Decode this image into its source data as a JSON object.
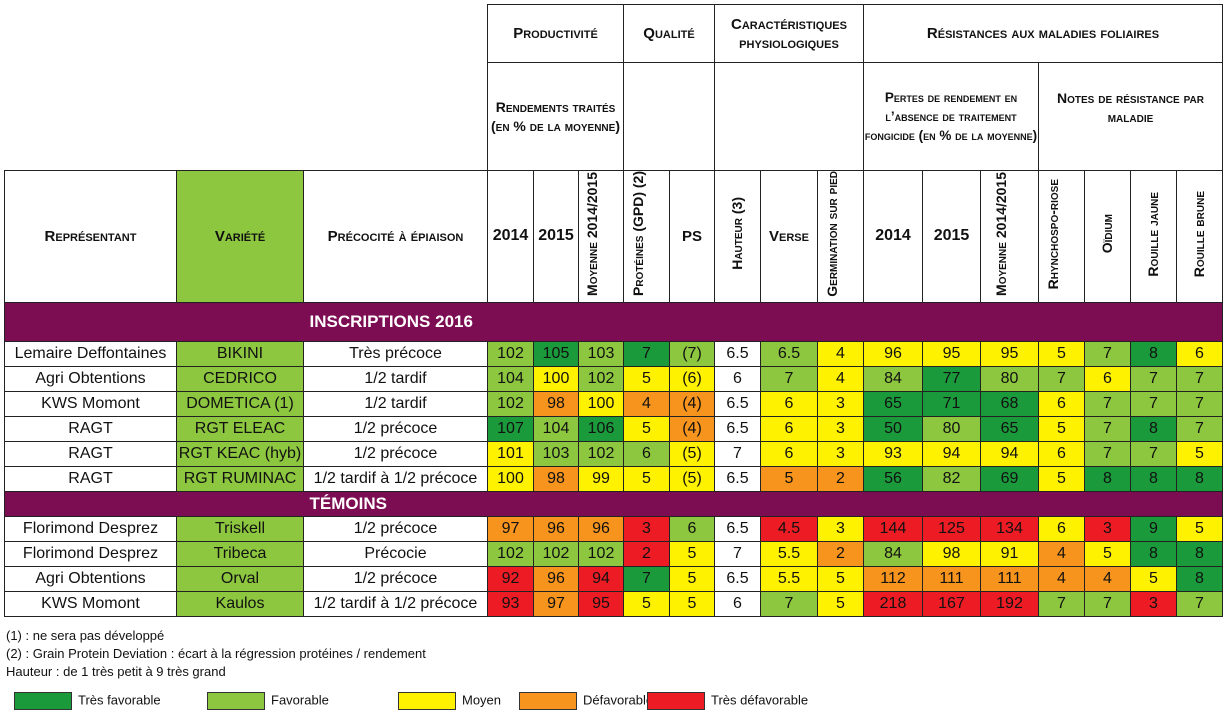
{
  "header": {
    "groups": {
      "productivite": "Productivité",
      "qualite": "Qualité",
      "caracteristiques": "Caractéristiques physiologiques",
      "resistances": "Résistances aux maladies foliaires"
    },
    "subgroups": {
      "rendements": "Rendements traités (en % de la moyenne)",
      "pertes": "Pertes de rendement en l’absence de traitement fongicide (en % de la moyenne)",
      "notes": "Notes de résistance par maladie"
    },
    "columns": {
      "representant": "Représentant",
      "variete": "Variété",
      "precocite": "Précocité à épiaison",
      "r2014": "2014",
      "r2015": "2015",
      "rmoy": "Moyenne 2014/2015",
      "proteines": "Protéines (GPD) (2)",
      "ps": "PS",
      "hauteur": "Hauteur (3)",
      "verse": "Verse",
      "germination": "Germination sur pied",
      "p2014": "2014",
      "p2015": "2015",
      "pmoy": "Moyenne 2014/2015",
      "rhyncho": "Rhynchospo-riose",
      "oidium": "Oïdium",
      "rjaune": "Rouille jaune",
      "rbrune": "Rouille brune"
    }
  },
  "sections": [
    {
      "title": "INSCRIPTIONS 2016",
      "rows": [
        {
          "representant": "Lemaire Deffontaines",
          "variete": "BIKINI",
          "precocite": "Très précoce",
          "values": [
            [
              "102",
              "F"
            ],
            [
              "105",
              "TF"
            ],
            [
              "103",
              "F"
            ],
            [
              "7",
              "TF"
            ],
            [
              "(7)",
              "F"
            ],
            [
              "6.5",
              "N"
            ],
            [
              "6.5",
              "F"
            ],
            [
              "4",
              "M"
            ],
            [
              "96",
              "M"
            ],
            [
              "95",
              "M"
            ],
            [
              "95",
              "M"
            ],
            [
              "5",
              "M"
            ],
            [
              "7",
              "F"
            ],
            [
              "8",
              "TF"
            ],
            [
              "6",
              "M"
            ]
          ]
        },
        {
          "representant": "Agri Obtentions",
          "variete": "CEDRICO",
          "precocite": "1/2 tardif",
          "values": [
            [
              "104",
              "F"
            ],
            [
              "100",
              "M"
            ],
            [
              "102",
              "F"
            ],
            [
              "5",
              "M"
            ],
            [
              "(6)",
              "M"
            ],
            [
              "6",
              "N"
            ],
            [
              "7",
              "F"
            ],
            [
              "4",
              "M"
            ],
            [
              "84",
              "F"
            ],
            [
              "77",
              "TF"
            ],
            [
              "80",
              "F"
            ],
            [
              "7",
              "F"
            ],
            [
              "6",
              "M"
            ],
            [
              "7",
              "F"
            ],
            [
              "7",
              "F"
            ]
          ]
        },
        {
          "representant": "KWS Momont",
          "variete": "DOMETICA (1)",
          "precocite": "1/2 tardif",
          "values": [
            [
              "102",
              "F"
            ],
            [
              "98",
              "D"
            ],
            [
              "100",
              "M"
            ],
            [
              "4",
              "D"
            ],
            [
              "(4)",
              "D"
            ],
            [
              "6.5",
              "N"
            ],
            [
              "6",
              "M"
            ],
            [
              "3",
              "M"
            ],
            [
              "65",
              "TF"
            ],
            [
              "71",
              "TF"
            ],
            [
              "68",
              "TF"
            ],
            [
              "6",
              "M"
            ],
            [
              "7",
              "F"
            ],
            [
              "7",
              "F"
            ],
            [
              "7",
              "F"
            ]
          ]
        },
        {
          "representant": "RAGT",
          "variete": "RGT ELEAC",
          "precocite": "1/2 précoce",
          "values": [
            [
              "107",
              "TF"
            ],
            [
              "104",
              "F"
            ],
            [
              "106",
              "TF"
            ],
            [
              "5",
              "M"
            ],
            [
              "(4)",
              "D"
            ],
            [
              "6.5",
              "N"
            ],
            [
              "6",
              "M"
            ],
            [
              "3",
              "M"
            ],
            [
              "50",
              "TF"
            ],
            [
              "80",
              "F"
            ],
            [
              "65",
              "TF"
            ],
            [
              "5",
              "M"
            ],
            [
              "7",
              "F"
            ],
            [
              "8",
              "TF"
            ],
            [
              "7",
              "F"
            ]
          ]
        },
        {
          "representant": "RAGT",
          "variete": "RGT KEAC (hyb)",
          "precocite": "1/2 précoce",
          "values": [
            [
              "101",
              "M"
            ],
            [
              "103",
              "F"
            ],
            [
              "102",
              "F"
            ],
            [
              "6",
              "F"
            ],
            [
              "(5)",
              "M"
            ],
            [
              "7",
              "N"
            ],
            [
              "6",
              "M"
            ],
            [
              "3",
              "M"
            ],
            [
              "93",
              "M"
            ],
            [
              "94",
              "M"
            ],
            [
              "94",
              "M"
            ],
            [
              "6",
              "M"
            ],
            [
              "7",
              "F"
            ],
            [
              "7",
              "F"
            ],
            [
              "5",
              "M"
            ]
          ]
        },
        {
          "representant": "RAGT",
          "variete": "RGT RUMINAC",
          "precocite": "1/2 tardif à 1/2 précoce",
          "values": [
            [
              "100",
              "M"
            ],
            [
              "98",
              "D"
            ],
            [
              "99",
              "M"
            ],
            [
              "5",
              "M"
            ],
            [
              "(5)",
              "M"
            ],
            [
              "6.5",
              "N"
            ],
            [
              "5",
              "D"
            ],
            [
              "2",
              "D"
            ],
            [
              "56",
              "TF"
            ],
            [
              "82",
              "F"
            ],
            [
              "69",
              "TF"
            ],
            [
              "5",
              "M"
            ],
            [
              "8",
              "TF"
            ],
            [
              "8",
              "TF"
            ],
            [
              "8",
              "TF"
            ]
          ]
        }
      ]
    },
    {
      "title": "TÉMOINS",
      "rows": [
        {
          "representant": "Florimond Desprez",
          "variete": "Triskell",
          "precocite": "1/2 précoce",
          "values": [
            [
              "97",
              "D"
            ],
            [
              "96",
              "D"
            ],
            [
              "96",
              "D"
            ],
            [
              "3",
              "TD"
            ],
            [
              "6",
              "F"
            ],
            [
              "6.5",
              "N"
            ],
            [
              "4.5",
              "TD"
            ],
            [
              "3",
              "M"
            ],
            [
              "144",
              "TD"
            ],
            [
              "125",
              "TD"
            ],
            [
              "134",
              "TD"
            ],
            [
              "6",
              "M"
            ],
            [
              "3",
              "TD"
            ],
            [
              "9",
              "TF"
            ],
            [
              "5",
              "M"
            ]
          ]
        },
        {
          "representant": "Florimond Desprez",
          "variete": "Tribeca",
          "precocite": "Précocie",
          "values": [
            [
              "102",
              "F"
            ],
            [
              "102",
              "F"
            ],
            [
              "102",
              "F"
            ],
            [
              "2",
              "TD"
            ],
            [
              "5",
              "M"
            ],
            [
              "7",
              "N"
            ],
            [
              "5.5",
              "M"
            ],
            [
              "2",
              "D"
            ],
            [
              "84",
              "F"
            ],
            [
              "98",
              "M"
            ],
            [
              "91",
              "M"
            ],
            [
              "4",
              "D"
            ],
            [
              "5",
              "M"
            ],
            [
              "8",
              "TF"
            ],
            [
              "8",
              "TF"
            ]
          ]
        },
        {
          "representant": "Agri Obtentions",
          "variete": "Orval",
          "precocite": "1/2 précoce",
          "values": [
            [
              "92",
              "TD"
            ],
            [
              "96",
              "D"
            ],
            [
              "94",
              "TD"
            ],
            [
              "7",
              "TF"
            ],
            [
              "5",
              "M"
            ],
            [
              "6.5",
              "N"
            ],
            [
              "5.5",
              "M"
            ],
            [
              "5",
              "M"
            ],
            [
              "112",
              "D"
            ],
            [
              "111",
              "D"
            ],
            [
              "111",
              "D"
            ],
            [
              "4",
              "D"
            ],
            [
              "4",
              "D"
            ],
            [
              "5",
              "M"
            ],
            [
              "8",
              "TF"
            ]
          ]
        },
        {
          "representant": "KWS Momont",
          "variete": "Kaulos",
          "precocite": "1/2 tardif à 1/2 précoce",
          "values": [
            [
              "93",
              "TD"
            ],
            [
              "97",
              "D"
            ],
            [
              "95",
              "TD"
            ],
            [
              "5",
              "M"
            ],
            [
              "5",
              "M"
            ],
            [
              "6",
              "N"
            ],
            [
              "7",
              "F"
            ],
            [
              "5",
              "M"
            ],
            [
              "218",
              "TD"
            ],
            [
              "167",
              "TD"
            ],
            [
              "192",
              "TD"
            ],
            [
              "7",
              "F"
            ],
            [
              "7",
              "F"
            ],
            [
              "3",
              "TD"
            ],
            [
              "7",
              "F"
            ]
          ]
        }
      ]
    }
  ],
  "notes": [
    "(1) : ne sera pas développé",
    "(2) : Grain Protein Deviation : écart à la régression protéines / rendement",
    "Hauteur : de 1 très petit à 9 très grand"
  ],
  "legend": [
    {
      "label": "Très favorable",
      "color": "#1b9a3c"
    },
    {
      "label": "Favorable",
      "color": "#8dc63f"
    },
    {
      "label": "Moyen",
      "color": "#fff200"
    },
    {
      "label": "Défavorable",
      "color": "#f7941d"
    },
    {
      "label": "Très défavorable",
      "color": "#ed1c24"
    }
  ],
  "colors": {
    "section_band": "#7d0d53",
    "variety_cell": "#8dc63f"
  }
}
